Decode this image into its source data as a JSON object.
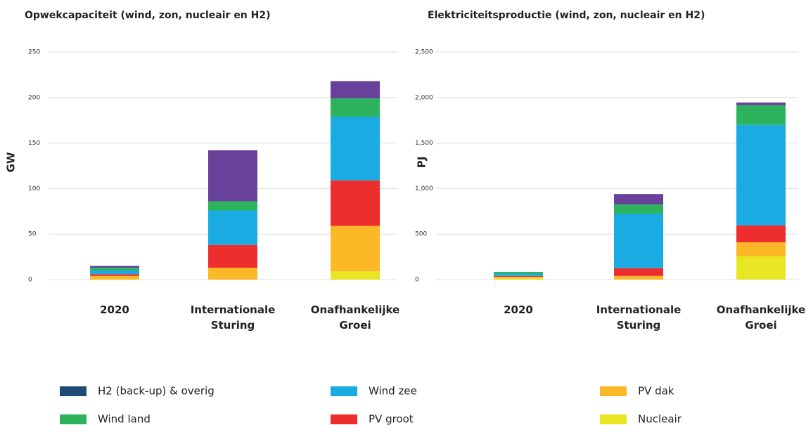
{
  "chart_data": [
    {
      "type": "stacked_bar",
      "title": "Opwekcapaciteit (wind, zon, nucleair en H2)",
      "y_label": "GW",
      "categories": [
        "2020",
        "Internationale Sturing",
        "Onafhankelijke Groei"
      ],
      "ylim": [
        0,
        250
      ],
      "yticks": [
        0,
        50,
        100,
        150,
        200,
        250
      ],
      "grid": true,
      "series": [
        {
          "name": "Nucleair",
          "color": "#e8e522",
          "values": [
            0,
            0,
            9
          ]
        },
        {
          "name": "PV dak",
          "color": "#fdb827",
          "values": [
            4,
            13,
            50
          ]
        },
        {
          "name": "PV groot",
          "color": "#ee2e2e",
          "values": [
            2,
            25,
            50
          ]
        },
        {
          "name": "Wind zee",
          "color": "#1aabe2",
          "values": [
            4,
            38,
            70
          ]
        },
        {
          "name": "Wind land",
          "color": "#2db35c",
          "values": [
            3,
            10,
            20
          ]
        },
        {
          "name": "H2 (back-up) & overig",
          "color": "#67419a",
          "legend_color": "#1d4a77",
          "values": [
            2,
            56,
            19
          ]
        }
      ]
    },
    {
      "type": "stacked_bar",
      "title": "Elektriciteitsproductie (wind, zon, nucleair en H2)",
      "y_label": "PJ",
      "categories": [
        "2020",
        "Internationale Sturing",
        "Onafhankelijke Groei"
      ],
      "ylim": [
        0,
        2500
      ],
      "yticks": [
        0,
        500,
        {
          "value": 1000,
          "label": "1,000"
        },
        {
          "value": 1500,
          "label": "1,500"
        },
        {
          "value": 2000,
          "label": "2,000"
        },
        {
          "value": 2500,
          "label": "2,500"
        }
      ],
      "grid": true,
      "series": [
        {
          "name": "Nucleair",
          "color": "#e8e522",
          "values": [
            20,
            0,
            255
          ]
        },
        {
          "name": "PV dak",
          "color": "#fdb827",
          "values": [
            10,
            40,
            155
          ]
        },
        {
          "name": "PV groot",
          "color": "#ee2e2e",
          "values": [
            10,
            85,
            185
          ]
        },
        {
          "name": "Wind zee",
          "color": "#1aabe2",
          "values": [
            25,
            600,
            1105
          ]
        },
        {
          "name": "Wind land",
          "color": "#2db35c",
          "values": [
            20,
            100,
            215
          ]
        },
        {
          "name": "H2 (back-up) & overig",
          "color": "#67419a",
          "values": [
            0,
            115,
            30
          ]
        }
      ]
    }
  ]
}
